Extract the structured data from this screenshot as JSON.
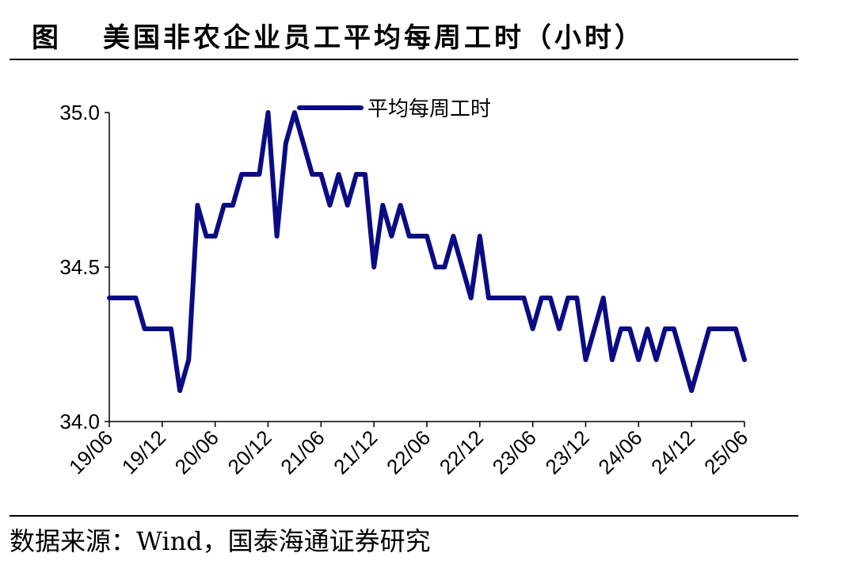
{
  "figure_label": "图",
  "figure_title": "美国非农企业员工平均每周工时（小时）",
  "source_note": "数据来源：Wind，国泰海通证券研究",
  "colors": {
    "series": "#0b0b84",
    "axis": "#000000",
    "text": "#000000"
  },
  "chart_data": {
    "type": "line",
    "title": "美国非农企业员工平均每周工时（小时）",
    "xlabel": "",
    "ylabel": "",
    "ylim": [
      34.0,
      35.0
    ],
    "yticks": [
      "34.0",
      "34.5",
      "35.0"
    ],
    "xticks": [
      "19/06",
      "19/12",
      "20/06",
      "20/12",
      "21/06",
      "21/12",
      "22/06",
      "22/12",
      "23/06",
      "23/12",
      "24/06",
      "24/12",
      "25/06"
    ],
    "grid": false,
    "legend_position": "top-center",
    "series": [
      {
        "name": "平均每周工时",
        "x": [
          "2019-06",
          "2019-07",
          "2019-08",
          "2019-09",
          "2019-10",
          "2019-11",
          "2019-12",
          "2020-01",
          "2020-02",
          "2020-03",
          "2020-04",
          "2020-05",
          "2020-06",
          "2020-07",
          "2020-08",
          "2020-09",
          "2020-10",
          "2020-11",
          "2020-12",
          "2021-01",
          "2021-02",
          "2021-03",
          "2021-04",
          "2021-05",
          "2021-06",
          "2021-07",
          "2021-08",
          "2021-09",
          "2021-10",
          "2021-11",
          "2021-12",
          "2022-01",
          "2022-02",
          "2022-03",
          "2022-04",
          "2022-05",
          "2022-06",
          "2022-07",
          "2022-08",
          "2022-09",
          "2022-10",
          "2022-11",
          "2022-12",
          "2023-01",
          "2023-02",
          "2023-03",
          "2023-04",
          "2023-05",
          "2023-06",
          "2023-07",
          "2023-08",
          "2023-09",
          "2023-10",
          "2023-11",
          "2023-12",
          "2024-01",
          "2024-02",
          "2024-03",
          "2024-04",
          "2024-05",
          "2024-06",
          "2024-07",
          "2024-08",
          "2024-09",
          "2024-10",
          "2024-11",
          "2024-12",
          "2025-01",
          "2025-02",
          "2025-03",
          "2025-04",
          "2025-05",
          "2025-06"
        ],
        "values": [
          34.4,
          34.4,
          34.4,
          34.4,
          34.3,
          34.3,
          34.3,
          34.3,
          34.1,
          34.2,
          34.7,
          34.6,
          34.6,
          34.7,
          34.7,
          34.8,
          34.8,
          34.8,
          35.0,
          34.6,
          34.9,
          35.0,
          34.9,
          34.8,
          34.8,
          34.7,
          34.8,
          34.7,
          34.8,
          34.8,
          34.5,
          34.7,
          34.6,
          34.7,
          34.6,
          34.6,
          34.6,
          34.5,
          34.5,
          34.6,
          34.5,
          34.4,
          34.6,
          34.4,
          34.4,
          34.4,
          34.4,
          34.4,
          34.3,
          34.4,
          34.4,
          34.3,
          34.4,
          34.4,
          34.2,
          34.3,
          34.4,
          34.2,
          34.3,
          34.3,
          34.2,
          34.3,
          34.2,
          34.3,
          34.3,
          34.2,
          34.1,
          34.2,
          34.3,
          34.3,
          34.3,
          34.3,
          34.2
        ]
      }
    ]
  }
}
